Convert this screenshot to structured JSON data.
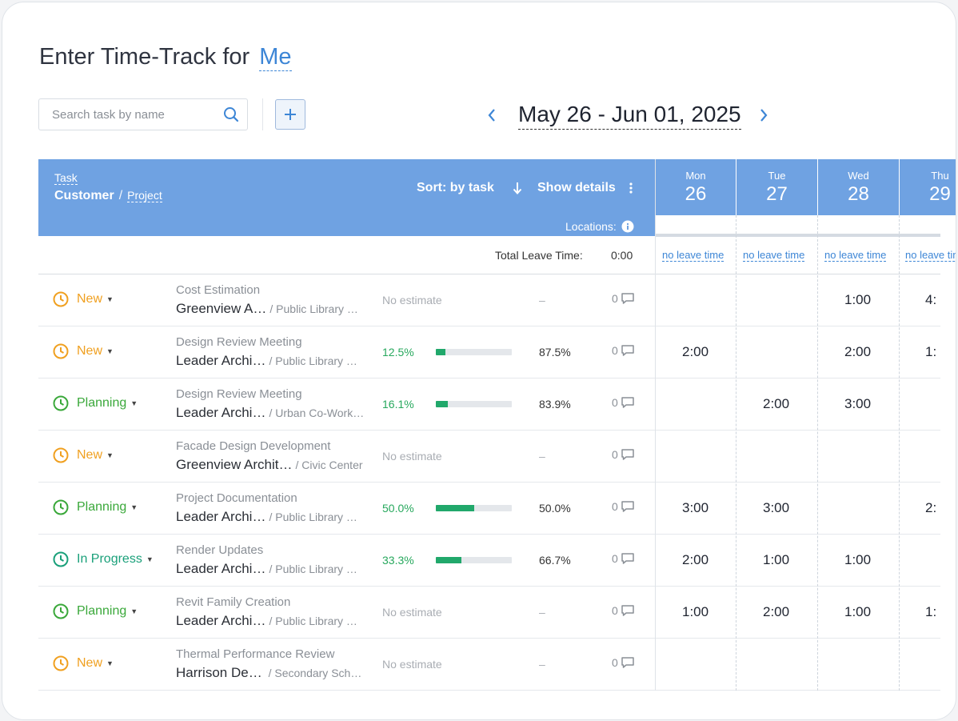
{
  "title": {
    "prefix": "Enter Time-Track for",
    "who": "Me"
  },
  "search": {
    "placeholder": "Search task by name"
  },
  "date_range": "May 26 - Jun 01, 2025",
  "header": {
    "task_label": "Task",
    "customer_label": "Customer",
    "separator": "/",
    "project_label": "Project",
    "sort_label": "Sort: by task",
    "details_label": "Show details",
    "locations_label": "Locations:"
  },
  "days": [
    {
      "name": "Mon",
      "num": "26"
    },
    {
      "name": "Tue",
      "num": "27"
    },
    {
      "name": "Wed",
      "num": "28"
    },
    {
      "name": "Thu",
      "num": "29"
    }
  ],
  "leave": {
    "label": "Total Leave Time:",
    "total": "0:00",
    "no_leave": [
      "no leave time",
      "no leave time",
      "no leave time",
      "no leave time"
    ]
  },
  "colors": {
    "new": "#f0a020",
    "planning": "#3aa83a",
    "in_progress": "#1aa07a",
    "accent": "#3d86d6",
    "header": "#6fa2e2"
  },
  "rows": [
    {
      "status": "New",
      "status_key": "new",
      "task": "Cost Estimation",
      "customer": "Greenview A…",
      "project": "/ Public Library …",
      "estimate": null,
      "noest": "No estimate",
      "remaining": "–",
      "comments": "0",
      "hours": [
        "",
        "",
        "1:00",
        "4:"
      ]
    },
    {
      "status": "New",
      "status_key": "new",
      "task": "Design Review Meeting",
      "customer": "Leader Archi…",
      "project": "/ Public Library …",
      "estimate": "12.5%",
      "progress": 12.5,
      "remaining": "87.5%",
      "comments": "0",
      "hours": [
        "2:00",
        "",
        "2:00",
        "1:"
      ]
    },
    {
      "status": "Planning",
      "status_key": "planning",
      "task": "Design Review Meeting",
      "customer": "Leader Archi…",
      "project": "/ Urban Co-Work…",
      "estimate": "16.1%",
      "progress": 16.1,
      "remaining": "83.9%",
      "comments": "0",
      "hours": [
        "",
        "2:00",
        "3:00",
        ""
      ]
    },
    {
      "status": "New",
      "status_key": "new",
      "task": "Facade Design Development",
      "customer": "Greenview Archit…",
      "project": "/ Civic Center",
      "estimate": null,
      "noest": "No estimate",
      "remaining": "–",
      "comments": "0",
      "hours": [
        "",
        "",
        "",
        ""
      ]
    },
    {
      "status": "Planning",
      "status_key": "planning",
      "task": "Project Documentation",
      "customer": "Leader Archi…",
      "project": "/ Public Library …",
      "estimate": "50.0%",
      "progress": 50.0,
      "remaining": "50.0%",
      "comments": "0",
      "hours": [
        "3:00",
        "3:00",
        "",
        "2:"
      ]
    },
    {
      "status": "In Progress",
      "status_key": "in_progress",
      "task": "Render Updates",
      "customer": "Leader Archi…",
      "project": "/ Public Library …",
      "estimate": "33.3%",
      "progress": 33.3,
      "remaining": "66.7%",
      "comments": "0",
      "hours": [
        "2:00",
        "1:00",
        "1:00",
        ""
      ]
    },
    {
      "status": "Planning",
      "status_key": "planning",
      "task": "Revit Family Creation",
      "customer": "Leader Archi…",
      "project": "/ Public Library …",
      "estimate": null,
      "noest": "No estimate",
      "remaining": "–",
      "comments": "0",
      "hours": [
        "1:00",
        "2:00",
        "1:00",
        "1:"
      ]
    },
    {
      "status": "New",
      "status_key": "new",
      "task": "Thermal Performance Review",
      "customer": "Harrison De…",
      "project": " / Secondary Sch…",
      "estimate": null,
      "noest": "No estimate",
      "remaining": "–",
      "comments": "0",
      "hours": [
        "",
        "",
        "",
        ""
      ]
    }
  ]
}
